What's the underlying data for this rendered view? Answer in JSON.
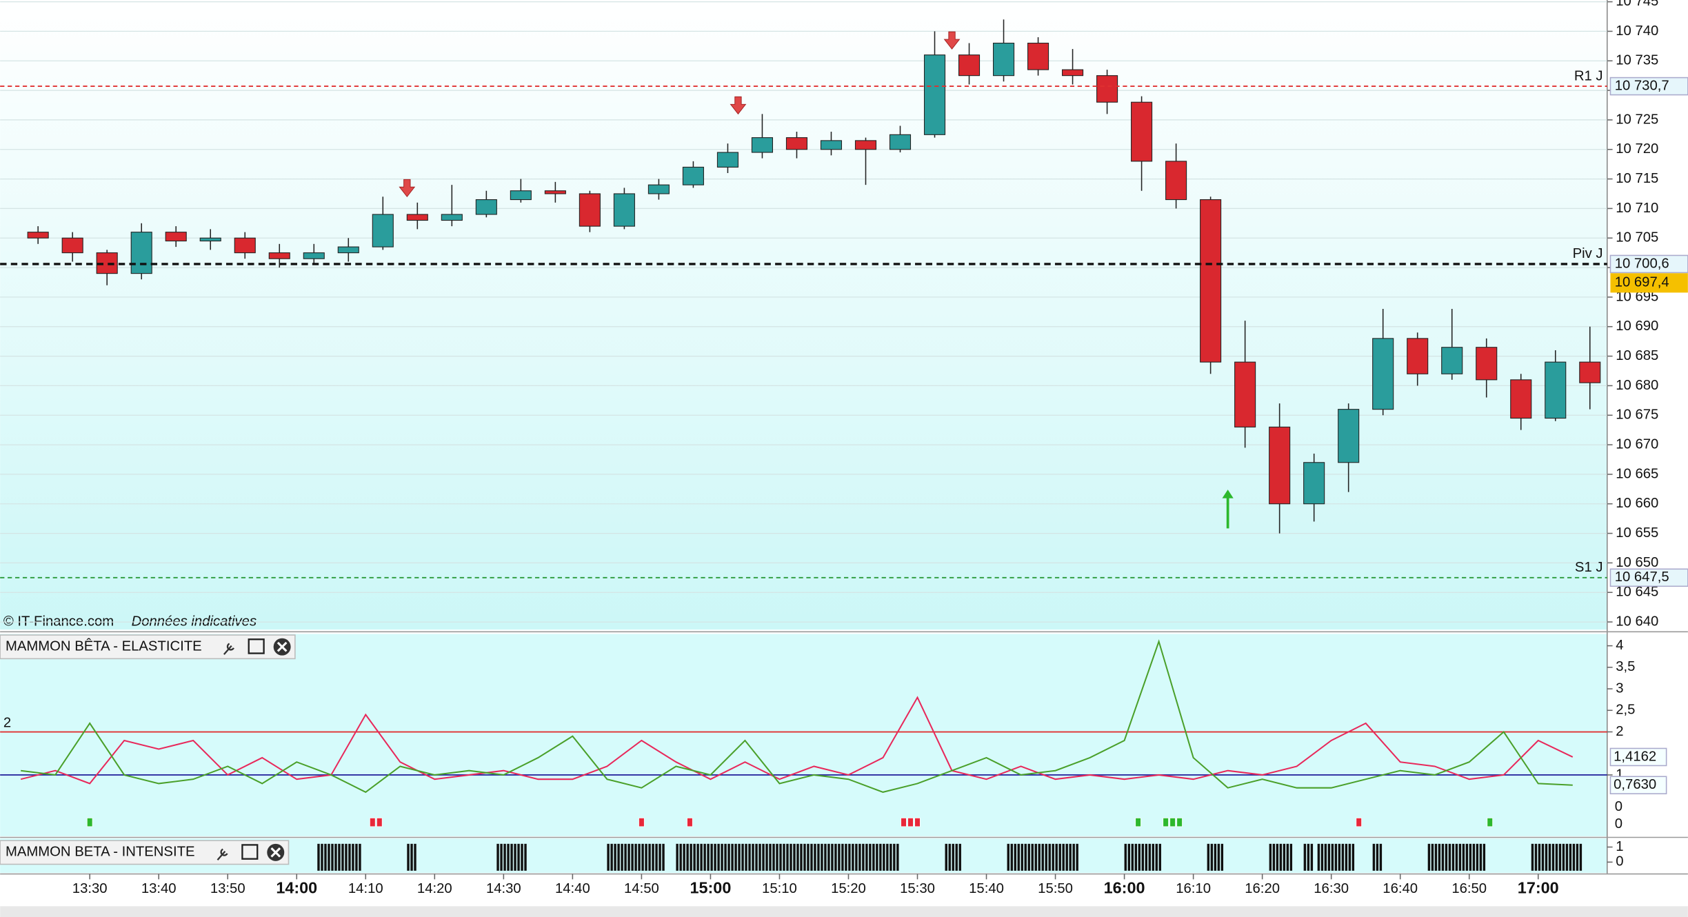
{
  "chart_data": [
    {
      "type": "candlestick",
      "source": "© IT-Finance.com",
      "note": "Données indicatives",
      "x": [
        "13:20",
        "13:25",
        "13:30",
        "13:35",
        "13:40",
        "13:45",
        "13:50",
        "13:55",
        "14:00",
        "14:05",
        "14:10",
        "14:15",
        "14:20",
        "14:25",
        "14:30",
        "14:35",
        "14:40",
        "14:45",
        "14:50",
        "14:55",
        "15:00",
        "15:05",
        "15:10",
        "15:15",
        "15:20",
        "15:25",
        "15:30",
        "15:35",
        "15:40",
        "15:45",
        "15:50",
        "15:55",
        "16:00",
        "16:05",
        "16:10",
        "16:15",
        "16:20",
        "16:25",
        "16:30",
        "16:35",
        "16:40",
        "16:45",
        "16:50",
        "16:55",
        "17:00",
        "17:05"
      ],
      "open": [
        10706,
        10705,
        10702.5,
        10699,
        10706,
        10704.5,
        10705,
        10702.5,
        10701.5,
        10702.5,
        10703.5,
        10709,
        10708,
        10709,
        10711.5,
        10713,
        10712.5,
        10707,
        10712.5,
        10714,
        10717,
        10719.5,
        10722,
        10720,
        10721.5,
        10720,
        10722.5,
        10736,
        10732.5,
        10738,
        10733.5,
        10732.5,
        10728,
        10718,
        10711.5,
        10684,
        10673,
        10660,
        10667,
        10676,
        10688,
        10682,
        10686.5,
        10681,
        10674.5,
        10684
      ],
      "high": [
        10707,
        10706,
        10703,
        10707.5,
        10707,
        10706.5,
        10706,
        10704,
        10704,
        10705,
        10712,
        10711,
        10714,
        10713,
        10715,
        10714.5,
        10713,
        10713.5,
        10715,
        10718,
        10721,
        10726,
        10723,
        10723,
        10722,
        10724,
        10740,
        10738,
        10742,
        10739,
        10737,
        10733.5,
        10729,
        10721,
        10712,
        10691,
        10677,
        10668.5,
        10677,
        10693,
        10689,
        10693,
        10688,
        10682,
        10686,
        10690
      ],
      "low": [
        10704,
        10701,
        10697,
        10698,
        10703.5,
        10703,
        10701.5,
        10700,
        10700.5,
        10701,
        10703,
        10706.5,
        10707,
        10708.5,
        10711,
        10711,
        10706,
        10706.5,
        10711.5,
        10713.5,
        10716,
        10718.5,
        10718.5,
        10719,
        10714,
        10719.5,
        10722,
        10731,
        10731.5,
        10732.5,
        10731,
        10726,
        10713,
        10710,
        10682,
        10669.5,
        10655,
        10657,
        10662,
        10675,
        10680,
        10681,
        10678,
        10672.5,
        10674,
        10676
      ],
      "close": [
        10705,
        10702.5,
        10699,
        10706,
        10704.5,
        10705,
        10702.5,
        10701.5,
        10702.5,
        10703.5,
        10709,
        10708,
        10709,
        10711.5,
        10713,
        10712.5,
        10707,
        10712.5,
        10714,
        10717,
        10719.5,
        10722,
        10720,
        10721.5,
        10720,
        10722.5,
        10736,
        10732.5,
        10738,
        10733.5,
        10732.5,
        10728,
        10718,
        10711.5,
        10684,
        10673,
        10660,
        10667,
        10676,
        10688,
        10682,
        10686.5,
        10681,
        10674.5,
        10684,
        10680.5
      ],
      "up_color": "#2a9d9c",
      "down_color": "#d9282f",
      "xlim": [
        "13:17",
        "17:10"
      ],
      "xticks": [
        "13:30",
        "13:40",
        "13:50",
        "14:00",
        "14:10",
        "14:20",
        "14:30",
        "14:40",
        "14:50",
        "15:00",
        "15:10",
        "15:20",
        "15:30",
        "15:40",
        "15:50",
        "16:00",
        "16:10",
        "16:20",
        "16:30",
        "16:40",
        "16:50",
        "17:00"
      ],
      "ylim": [
        10638.7,
        10745.3
      ],
      "yticks": [
        {
          "value": 10640,
          "label": "10 640"
        },
        {
          "value": 10645,
          "label": "10 645"
        },
        {
          "value": 10650,
          "label": "10 650"
        },
        {
          "value": 10655,
          "label": "10 655"
        },
        {
          "value": 10660,
          "label": "10 660"
        },
        {
          "value": 10665,
          "label": "10 665"
        },
        {
          "value": 10670,
          "label": "10 670"
        },
        {
          "value": 10675,
          "label": "10 675"
        },
        {
          "value": 10680,
          "label": "10 680"
        },
        {
          "value": 10685,
          "label": "10 685"
        },
        {
          "value": 10690,
          "label": "10 690"
        },
        {
          "value": 10695,
          "label": "10 695"
        },
        {
          "value": 10700,
          "label": "10 700"
        },
        {
          "value": 10705,
          "label": "10 705"
        },
        {
          "value": 10710,
          "label": "10 710"
        },
        {
          "value": 10715,
          "label": "10 715"
        },
        {
          "value": 10720,
          "label": "10 720"
        },
        {
          "value": 10725,
          "label": "10 725"
        },
        {
          "value": 10730,
          "label": "10 730"
        },
        {
          "value": 10735,
          "label": "10 735"
        },
        {
          "value": 10740,
          "label": "10 740"
        },
        {
          "value": 10745,
          "label": "10 745"
        }
      ],
      "grid": true,
      "levels": [
        {
          "name": "R1 J",
          "value": 10730.7,
          "label": "10 730,7",
          "color": "#e03030"
        },
        {
          "name": "Piv J",
          "value": 10700.6,
          "label": "10 700,6",
          "color": "#111111"
        },
        {
          "name": "S1 J",
          "value": 10647.5,
          "label": "10 647,5",
          "color": "#2a9a3a"
        }
      ],
      "last_price": {
        "value": 10697.4,
        "label": "10 697,4",
        "color": "#f5c000"
      },
      "arrows": [
        {
          "x": "14:16",
          "y": 10712,
          "direction": "down",
          "color": "#e04848"
        },
        {
          "x": "15:04",
          "y": 10726,
          "direction": "down",
          "color": "#e04848"
        },
        {
          "x": "15:35",
          "y": 10737,
          "direction": "down",
          "color": "#e04848"
        },
        {
          "x": "16:15",
          "y": 10662.4,
          "direction": "up",
          "color": "#2db82d"
        }
      ]
    },
    {
      "type": "line",
      "title": "MAMMON BÊTA - ELASTICITE",
      "x": [
        "13:20",
        "13:25",
        "13:30",
        "13:35",
        "13:40",
        "13:45",
        "13:50",
        "13:55",
        "14:00",
        "14:05",
        "14:10",
        "14:15",
        "14:20",
        "14:25",
        "14:30",
        "14:35",
        "14:40",
        "14:45",
        "14:50",
        "14:55",
        "15:00",
        "15:05",
        "15:10",
        "15:15",
        "15:20",
        "15:25",
        "15:30",
        "15:35",
        "15:40",
        "15:45",
        "15:50",
        "15:55",
        "16:00",
        "16:05",
        "16:10",
        "16:15",
        "16:20",
        "16:25",
        "16:30",
        "16:35",
        "16:40",
        "16:45",
        "16:50",
        "16:55",
        "17:00",
        "17:05"
      ],
      "series": [
        {
          "color": "#e8285a",
          "last_label": "1,4162",
          "values": [
            0.9,
            1.1,
            0.8,
            1.8,
            1.6,
            1.8,
            1.0,
            1.4,
            0.9,
            1.0,
            2.4,
            1.3,
            0.9,
            1.0,
            1.1,
            0.9,
            0.9,
            1.2,
            1.8,
            1.3,
            0.9,
            1.3,
            0.9,
            1.2,
            1.0,
            1.4,
            2.8,
            1.1,
            0.9,
            1.2,
            0.9,
            1.0,
            0.9,
            1.0,
            0.9,
            1.1,
            1.0,
            1.2,
            1.8,
            2.2,
            1.3,
            1.2,
            0.9,
            1.0,
            1.8,
            1.4162
          ]
        },
        {
          "color": "#4aa02a",
          "last_label": "0,7630",
          "values": [
            1.1,
            1.0,
            2.2,
            1.0,
            0.8,
            0.9,
            1.2,
            0.8,
            1.3,
            1.0,
            0.6,
            1.2,
            1.0,
            1.1,
            1.0,
            1.4,
            1.9,
            0.9,
            0.7,
            1.2,
            1.0,
            1.8,
            0.8,
            1.0,
            0.9,
            0.6,
            0.8,
            1.1,
            1.4,
            1.0,
            1.1,
            1.4,
            1.8,
            4.1,
            1.4,
            0.7,
            0.9,
            0.7,
            0.7,
            0.9,
            1.1,
            1.0,
            1.3,
            2.0,
            0.8,
            0.763
          ]
        }
      ],
      "reference_lines": [
        {
          "value": 2,
          "color": "#e03030"
        },
        {
          "value": 1,
          "color": "#2a2aa0"
        }
      ],
      "signals": [
        {
          "color": "#2db82d",
          "zero_label": "0",
          "x": [
            "13:30",
            "16:02",
            "16:06",
            "16:07",
            "16:08",
            "16:53"
          ]
        },
        {
          "color": "#e8283a",
          "zero_label": "0",
          "x": [
            "14:11",
            "14:12",
            "14:50",
            "14:57",
            "15:28",
            "15:29",
            "15:30",
            "16:34"
          ]
        }
      ],
      "xlim": [
        "13:17",
        "17:10"
      ],
      "ylim": [
        -0.4,
        4.25
      ],
      "yticks": [
        4,
        {
          "value": 3.5,
          "label": "3,5"
        },
        3,
        {
          "value": 2.5,
          "label": "2,5"
        },
        2,
        1
      ]
    },
    {
      "type": "bar",
      "title": "MAMMON BETA - INTENSITE",
      "color": "#111111",
      "periods": [
        [
          "14:03",
          "14:09"
        ],
        [
          "14:16",
          "14:17"
        ],
        [
          "14:29",
          "14:33"
        ],
        [
          "14:45",
          "14:53"
        ],
        [
          "14:55",
          "15:27"
        ],
        [
          "15:34",
          "15:36"
        ],
        [
          "15:43",
          "15:53"
        ],
        [
          "16:00",
          "16:05"
        ],
        [
          "16:12",
          "16:14"
        ],
        [
          "16:21",
          "16:24"
        ],
        [
          "16:26",
          "16:27"
        ],
        [
          "16:28",
          "16:33"
        ],
        [
          "16:36",
          "16:37"
        ],
        [
          "16:44",
          "16:52"
        ],
        [
          "16:59",
          "17:06"
        ]
      ],
      "xlim": [
        "13:17",
        "17:10"
      ],
      "ylim": [
        -0.786,
        1.643
      ],
      "yticks": [
        1,
        0
      ]
    }
  ]
}
